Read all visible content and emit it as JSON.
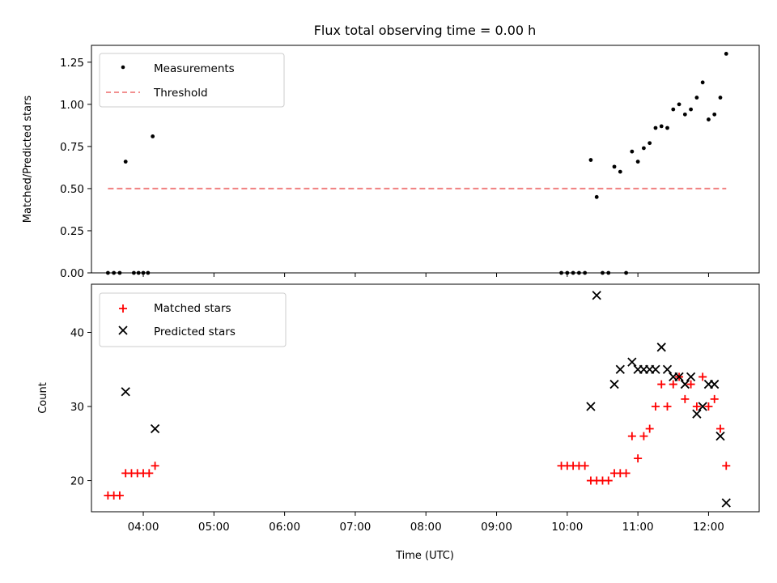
{
  "title": "Flux total observing time = 0.00 h",
  "chart_data": [
    {
      "type": "scatter",
      "ylabel": "Matched/Predicted stars",
      "ylim": [
        0,
        1.35
      ],
      "xlim": [
        "03:16",
        "12:43"
      ],
      "x_ticks": [
        "04:00",
        "05:00",
        "06:00",
        "07:00",
        "08:00",
        "09:00",
        "10:00",
        "11:00",
        "12:00"
      ],
      "y_ticks": [
        "0.00",
        "0.25",
        "0.50",
        "0.75",
        "1.00",
        "1.25"
      ],
      "legend_position": "top-left",
      "series": [
        {
          "name": "Measurements",
          "marker": "dot",
          "color": "#000000",
          "points": [
            [
              "03:30",
              0
            ],
            [
              "03:35",
              0
            ],
            [
              "03:40",
              0
            ],
            [
              "03:45",
              0.66
            ],
            [
              "03:52",
              0
            ],
            [
              "03:56",
              0
            ],
            [
              "04:00",
              0
            ],
            [
              "04:04",
              0
            ],
            [
              "04:08",
              0.81
            ],
            [
              "09:55",
              0
            ],
            [
              "10:00",
              0
            ],
            [
              "10:05",
              0
            ],
            [
              "10:10",
              0
            ],
            [
              "10:15",
              0
            ],
            [
              "10:20",
              0.67
            ],
            [
              "10:25",
              0.45
            ],
            [
              "10:30",
              0
            ],
            [
              "10:35",
              0
            ],
            [
              "10:40",
              0.63
            ],
            [
              "10:45",
              0.6
            ],
            [
              "10:50",
              0
            ],
            [
              "10:55",
              0.72
            ],
            [
              "11:00",
              0.66
            ],
            [
              "11:05",
              0.74
            ],
            [
              "11:10",
              0.77
            ],
            [
              "11:15",
              0.86
            ],
            [
              "11:20",
              0.87
            ],
            [
              "11:25",
              0.86
            ],
            [
              "11:30",
              0.97
            ],
            [
              "11:35",
              1.0
            ],
            [
              "11:40",
              0.94
            ],
            [
              "11:45",
              0.97
            ],
            [
              "11:50",
              1.04
            ],
            [
              "11:55",
              1.13
            ],
            [
              "12:00",
              0.91
            ],
            [
              "12:05",
              0.94
            ],
            [
              "12:10",
              1.04
            ],
            [
              "12:15",
              1.3
            ]
          ]
        },
        {
          "name": "Threshold",
          "style": "dashed-line",
          "color": "#f08080",
          "points": [
            [
              "03:30",
              0.5
            ],
            [
              "12:15",
              0.5
            ]
          ]
        }
      ]
    },
    {
      "type": "scatter",
      "xlabel": "Time (UTC)",
      "ylabel": "Count",
      "ylim": [
        15.8,
        46.5
      ],
      "xlim": [
        "03:16",
        "12:43"
      ],
      "x_ticks": [
        "04:00",
        "05:00",
        "06:00",
        "07:00",
        "08:00",
        "09:00",
        "10:00",
        "11:00",
        "12:00"
      ],
      "y_ticks": [
        "20",
        "30",
        "40"
      ],
      "legend_position": "top-left",
      "series": [
        {
          "name": "Matched stars",
          "marker": "plus",
          "color": "#ff0000",
          "points": [
            [
              "03:30",
              18
            ],
            [
              "03:35",
              18
            ],
            [
              "03:40",
              18
            ],
            [
              "03:45",
              21
            ],
            [
              "03:50",
              21
            ],
            [
              "03:55",
              21
            ],
            [
              "04:00",
              21
            ],
            [
              "04:05",
              21
            ],
            [
              "04:10",
              22
            ],
            [
              "09:55",
              22
            ],
            [
              "10:00",
              22
            ],
            [
              "10:05",
              22
            ],
            [
              "10:10",
              22
            ],
            [
              "10:15",
              22
            ],
            [
              "10:20",
              20
            ],
            [
              "10:25",
              20
            ],
            [
              "10:30",
              20
            ],
            [
              "10:35",
              20
            ],
            [
              "10:40",
              21
            ],
            [
              "10:45",
              21
            ],
            [
              "10:50",
              21
            ],
            [
              "10:55",
              26
            ],
            [
              "11:00",
              23
            ],
            [
              "11:05",
              26
            ],
            [
              "11:10",
              27
            ],
            [
              "11:15",
              30
            ],
            [
              "11:20",
              33
            ],
            [
              "11:25",
              30
            ],
            [
              "11:30",
              33
            ],
            [
              "11:35",
              34
            ],
            [
              "11:40",
              31
            ],
            [
              "11:45",
              33
            ],
            [
              "11:50",
              30
            ],
            [
              "11:55",
              34
            ],
            [
              "12:00",
              30
            ],
            [
              "12:05",
              31
            ],
            [
              "12:10",
              27
            ],
            [
              "12:15",
              22
            ]
          ]
        },
        {
          "name": "Predicted stars",
          "marker": "x",
          "color": "#000000",
          "points": [
            [
              "03:45",
              32
            ],
            [
              "04:10",
              27
            ],
            [
              "10:20",
              30
            ],
            [
              "10:25",
              45
            ],
            [
              "10:40",
              33
            ],
            [
              "10:45",
              35
            ],
            [
              "10:55",
              36
            ],
            [
              "11:00",
              35
            ],
            [
              "11:05",
              35
            ],
            [
              "11:10",
              35
            ],
            [
              "11:15",
              35
            ],
            [
              "11:20",
              38
            ],
            [
              "11:25",
              35
            ],
            [
              "11:30",
              34
            ],
            [
              "11:35",
              34
            ],
            [
              "11:40",
              33
            ],
            [
              "11:45",
              34
            ],
            [
              "11:50",
              29
            ],
            [
              "11:55",
              30
            ],
            [
              "12:00",
              33
            ],
            [
              "12:05",
              33
            ],
            [
              "12:10",
              26
            ],
            [
              "12:15",
              17
            ]
          ]
        }
      ]
    }
  ]
}
